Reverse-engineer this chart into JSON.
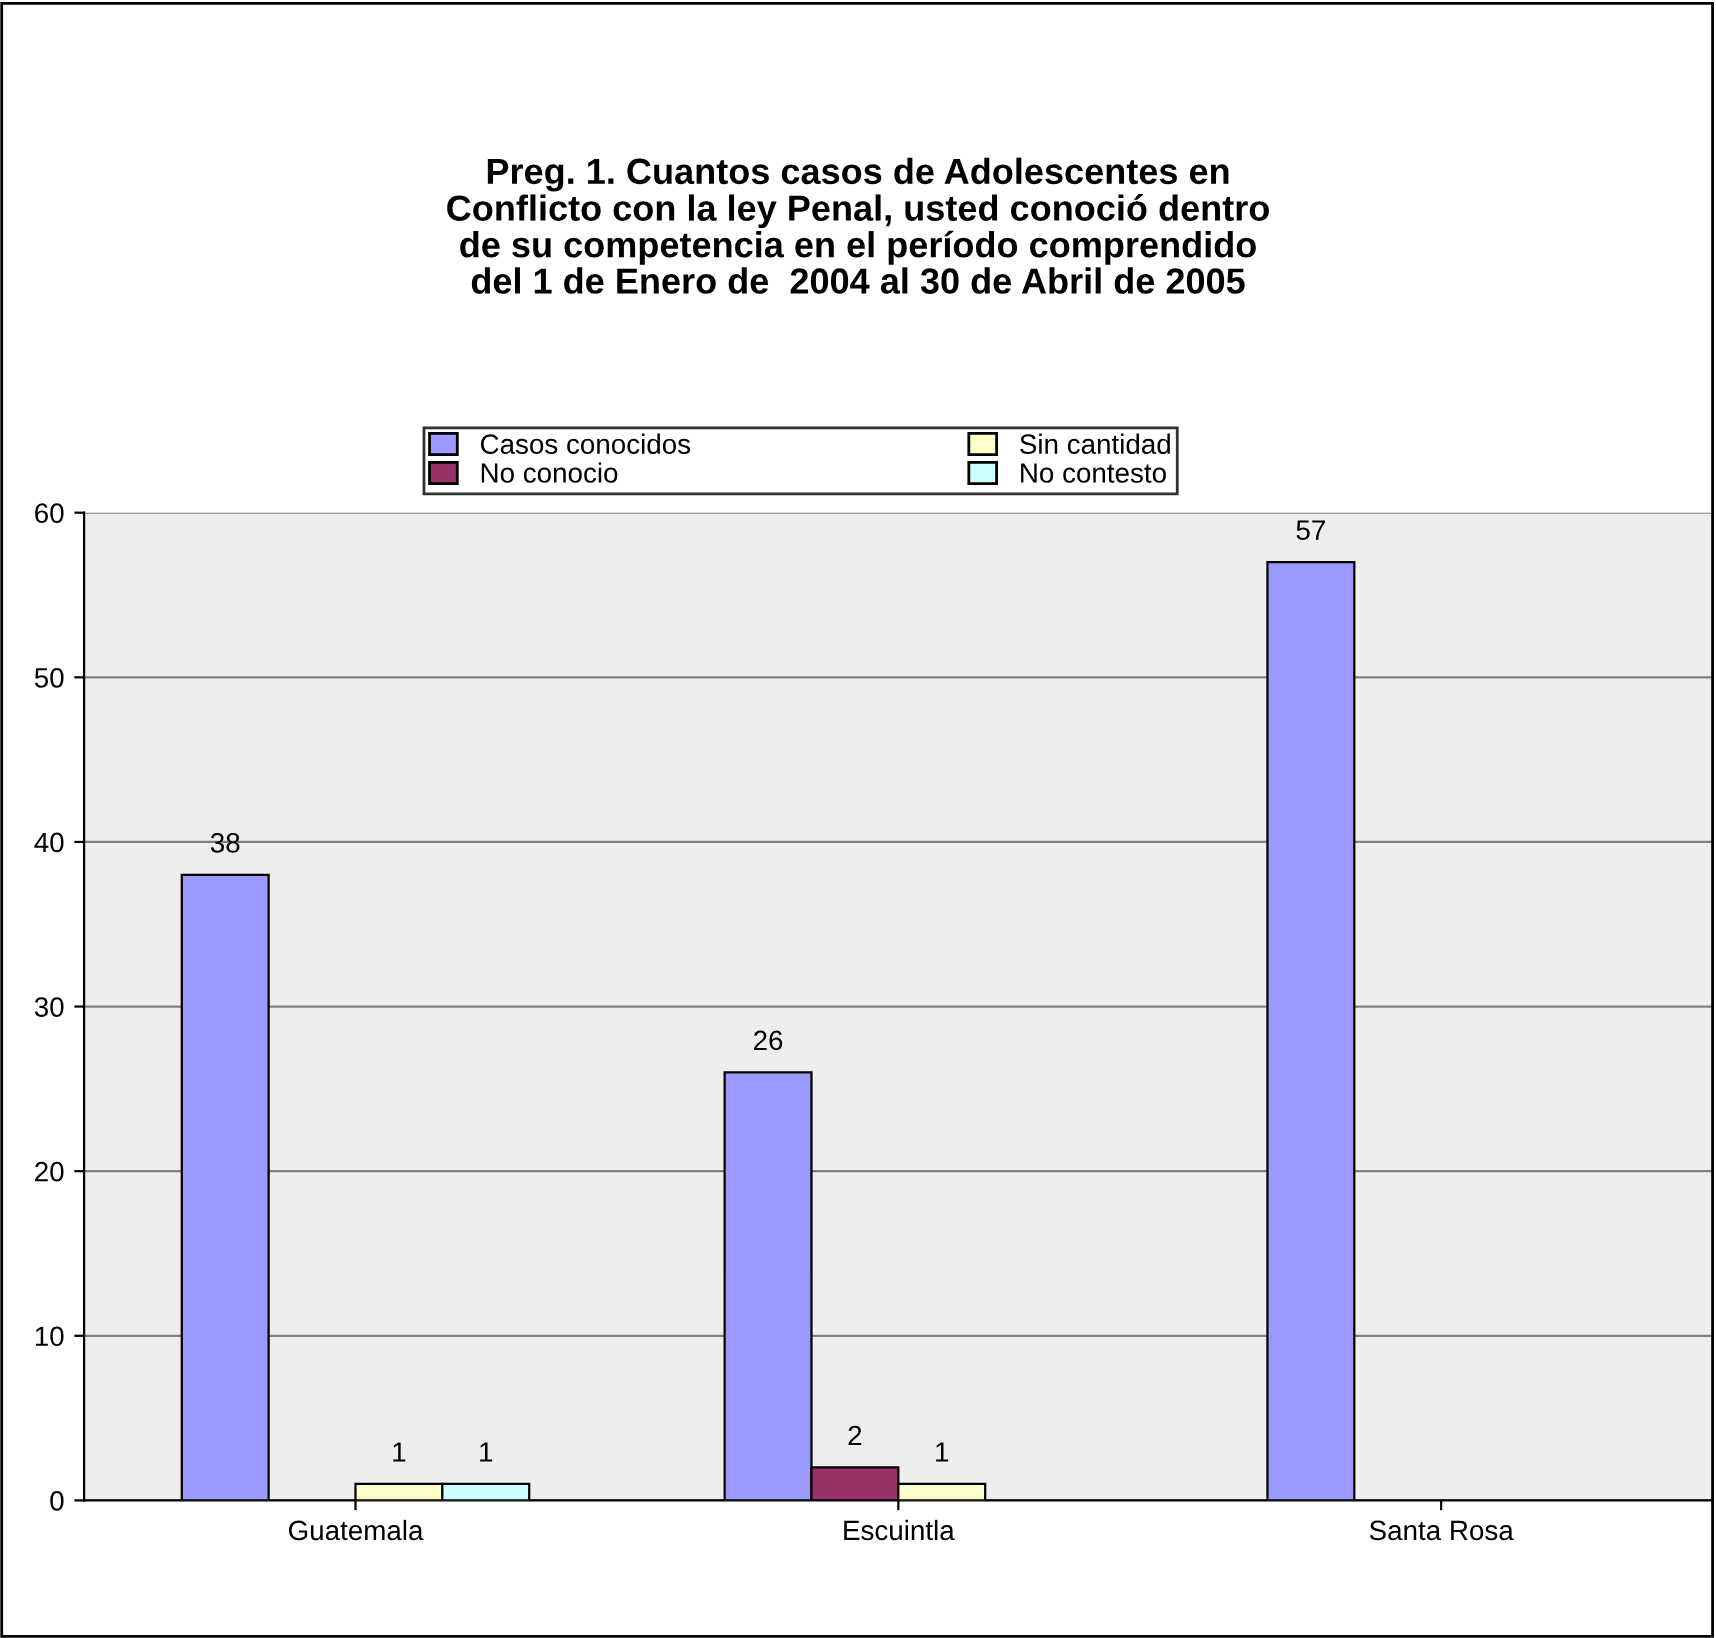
{
  "chart_data": {
    "type": "bar",
    "title": "Preg. 1. Cuantos casos de Adolescentes en\nConflicto con la ley Penal, usted conoció dentro\nde su competencia en el período comprendido\ndel 1 de Enero de  2004 al 30 de Abril de 2005",
    "categories": [
      "Guatemala",
      "Escuintla",
      "Santa Rosa"
    ],
    "series": [
      {
        "name": "Casos conocidos",
        "color": "#9999ff",
        "values": [
          38,
          26,
          57
        ]
      },
      {
        "name": "No conocio",
        "color": "#993366",
        "values": [
          null,
          2,
          null
        ]
      },
      {
        "name": "Sin cantidad",
        "color": "#ffffcc",
        "values": [
          1,
          1,
          null
        ]
      },
      {
        "name": "No contesto",
        "color": "#ccffff",
        "values": [
          1,
          null,
          null
        ]
      }
    ],
    "ylim": [
      0,
      60
    ],
    "yticks": [
      0,
      10,
      20,
      30,
      40,
      50,
      60
    ],
    "grid": "y",
    "legend": "top",
    "data_labels": true
  }
}
